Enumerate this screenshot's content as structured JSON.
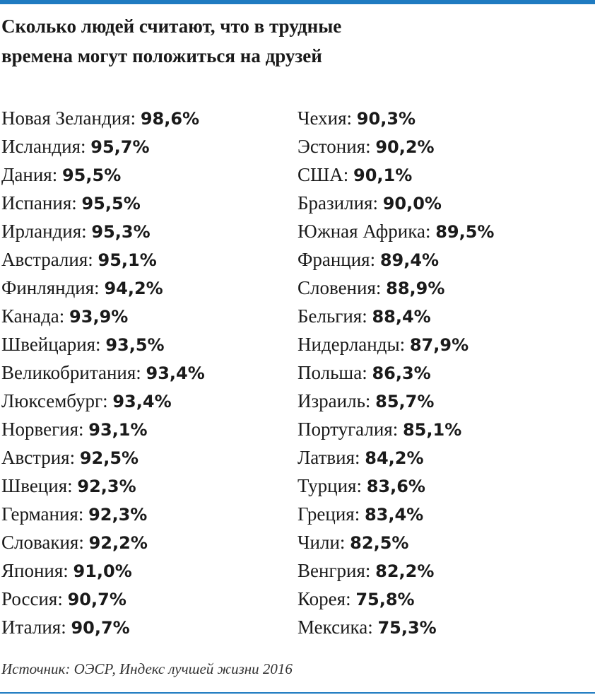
{
  "header": {
    "title": [
      "Сколько людей считают, что в трудные",
      "времена могут положиться на друзей"
    ]
  },
  "columns": [
    [
      {
        "name": "Новая Зеландия:",
        "value": "98,6%"
      },
      {
        "name": "Исландия:",
        "value": "95,7%"
      },
      {
        "name": "Дания:",
        "value": "95,5%"
      },
      {
        "name": "Испания:",
        "value": "95,5%"
      },
      {
        "name": "Ирландия:",
        "value": "95,3%"
      },
      {
        "name": "Австралия:",
        "value": "95,1%"
      },
      {
        "name": "Финляндия:",
        "value": "94,2%"
      },
      {
        "name": "Канада:",
        "value": "93,9%"
      },
      {
        "name": "Швейцария:",
        "value": "93,5%"
      },
      {
        "name": "Великобритания:",
        "value": "93,4%"
      },
      {
        "name": "Люксембург:",
        "value": "93,4%"
      },
      {
        "name": "Норвегия:",
        "value": "93,1%"
      },
      {
        "name": "Австрия:",
        "value": "92,5%"
      },
      {
        "name": "Швеция:",
        "value": "92,3%"
      },
      {
        "name": "Германия:",
        "value": "92,3%"
      },
      {
        "name": "Словакия:",
        "value": "92,2%"
      },
      {
        "name": "Япония:",
        "value": "91,0%"
      },
      {
        "name": "Россия:",
        "value": "90,7%"
      },
      {
        "name": "Италия:",
        "value": "90,7%"
      }
    ],
    [
      {
        "name": "Чехия:",
        "value": "90,3%"
      },
      {
        "name": "Эстония:",
        "value": "90,2%"
      },
      {
        "name": "США:",
        "value": "90,1%"
      },
      {
        "name": "Бразилия:",
        "value": "90,0%"
      },
      {
        "name": "Южная Африка:",
        "value": "89,5%"
      },
      {
        "name": "Франция:",
        "value": "89,4%"
      },
      {
        "name": "Словения:",
        "value": "88,9%"
      },
      {
        "name": "Бельгия:",
        "value": "88,4%"
      },
      {
        "name": "Нидерланды:",
        "value": "87,9%"
      },
      {
        "name": "Польша:",
        "value": "86,3%"
      },
      {
        "name": "Израиль:",
        "value": "85,7%"
      },
      {
        "name": "Португалия:",
        "value": "85,1%"
      },
      {
        "name": "Латвия:",
        "value": "84,2%"
      },
      {
        "name": "Турция:",
        "value": "83,6%"
      },
      {
        "name": "Греция:",
        "value": "83,4%"
      },
      {
        "name": "Чили:",
        "value": "82,5%"
      },
      {
        "name": "Венгрия:",
        "value": "82,2%"
      },
      {
        "name": "Корея:",
        "value": "75,8%"
      },
      {
        "name": "Мексика:",
        "value": "75,3%"
      }
    ]
  ],
  "source": "Источник: ОЭСР, Индекс лучшей жизни 2016"
}
